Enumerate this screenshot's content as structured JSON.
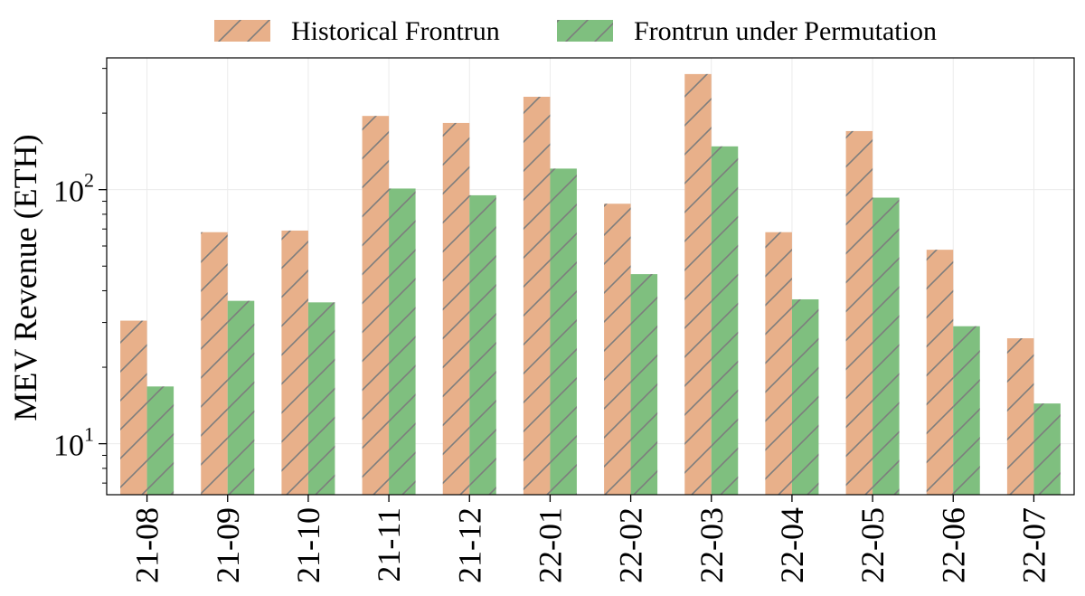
{
  "chart_data": {
    "type": "bar",
    "yscale": "log",
    "ylim": [
      6.3,
      330
    ],
    "ylabel": "MEV Revenue (ETH)",
    "y_ticks": [
      {
        "value": 10,
        "base": "10",
        "exp": "1"
      },
      {
        "value": 100,
        "base": "10",
        "exp": "2"
      }
    ],
    "categories": [
      "21-08",
      "21-09",
      "21-10",
      "21-11",
      "21-12",
      "22-01",
      "22-02",
      "22-03",
      "22-04",
      "22-05",
      "22-06",
      "22-07"
    ],
    "series": [
      {
        "name": "Historical Frontrun",
        "color": "#e8b08a",
        "values": [
          30.5,
          68,
          69,
          195,
          183,
          232,
          88,
          285,
          68,
          170,
          58,
          26
        ]
      },
      {
        "name": "Frontrun under Permutation",
        "color": "#7fbf7f",
        "values": [
          16.8,
          36.5,
          36,
          101,
          95,
          121,
          46.5,
          148,
          37,
          93,
          29,
          14.4
        ]
      }
    ],
    "hatch": "diagonal",
    "grid": true,
    "legend": "top-center"
  }
}
